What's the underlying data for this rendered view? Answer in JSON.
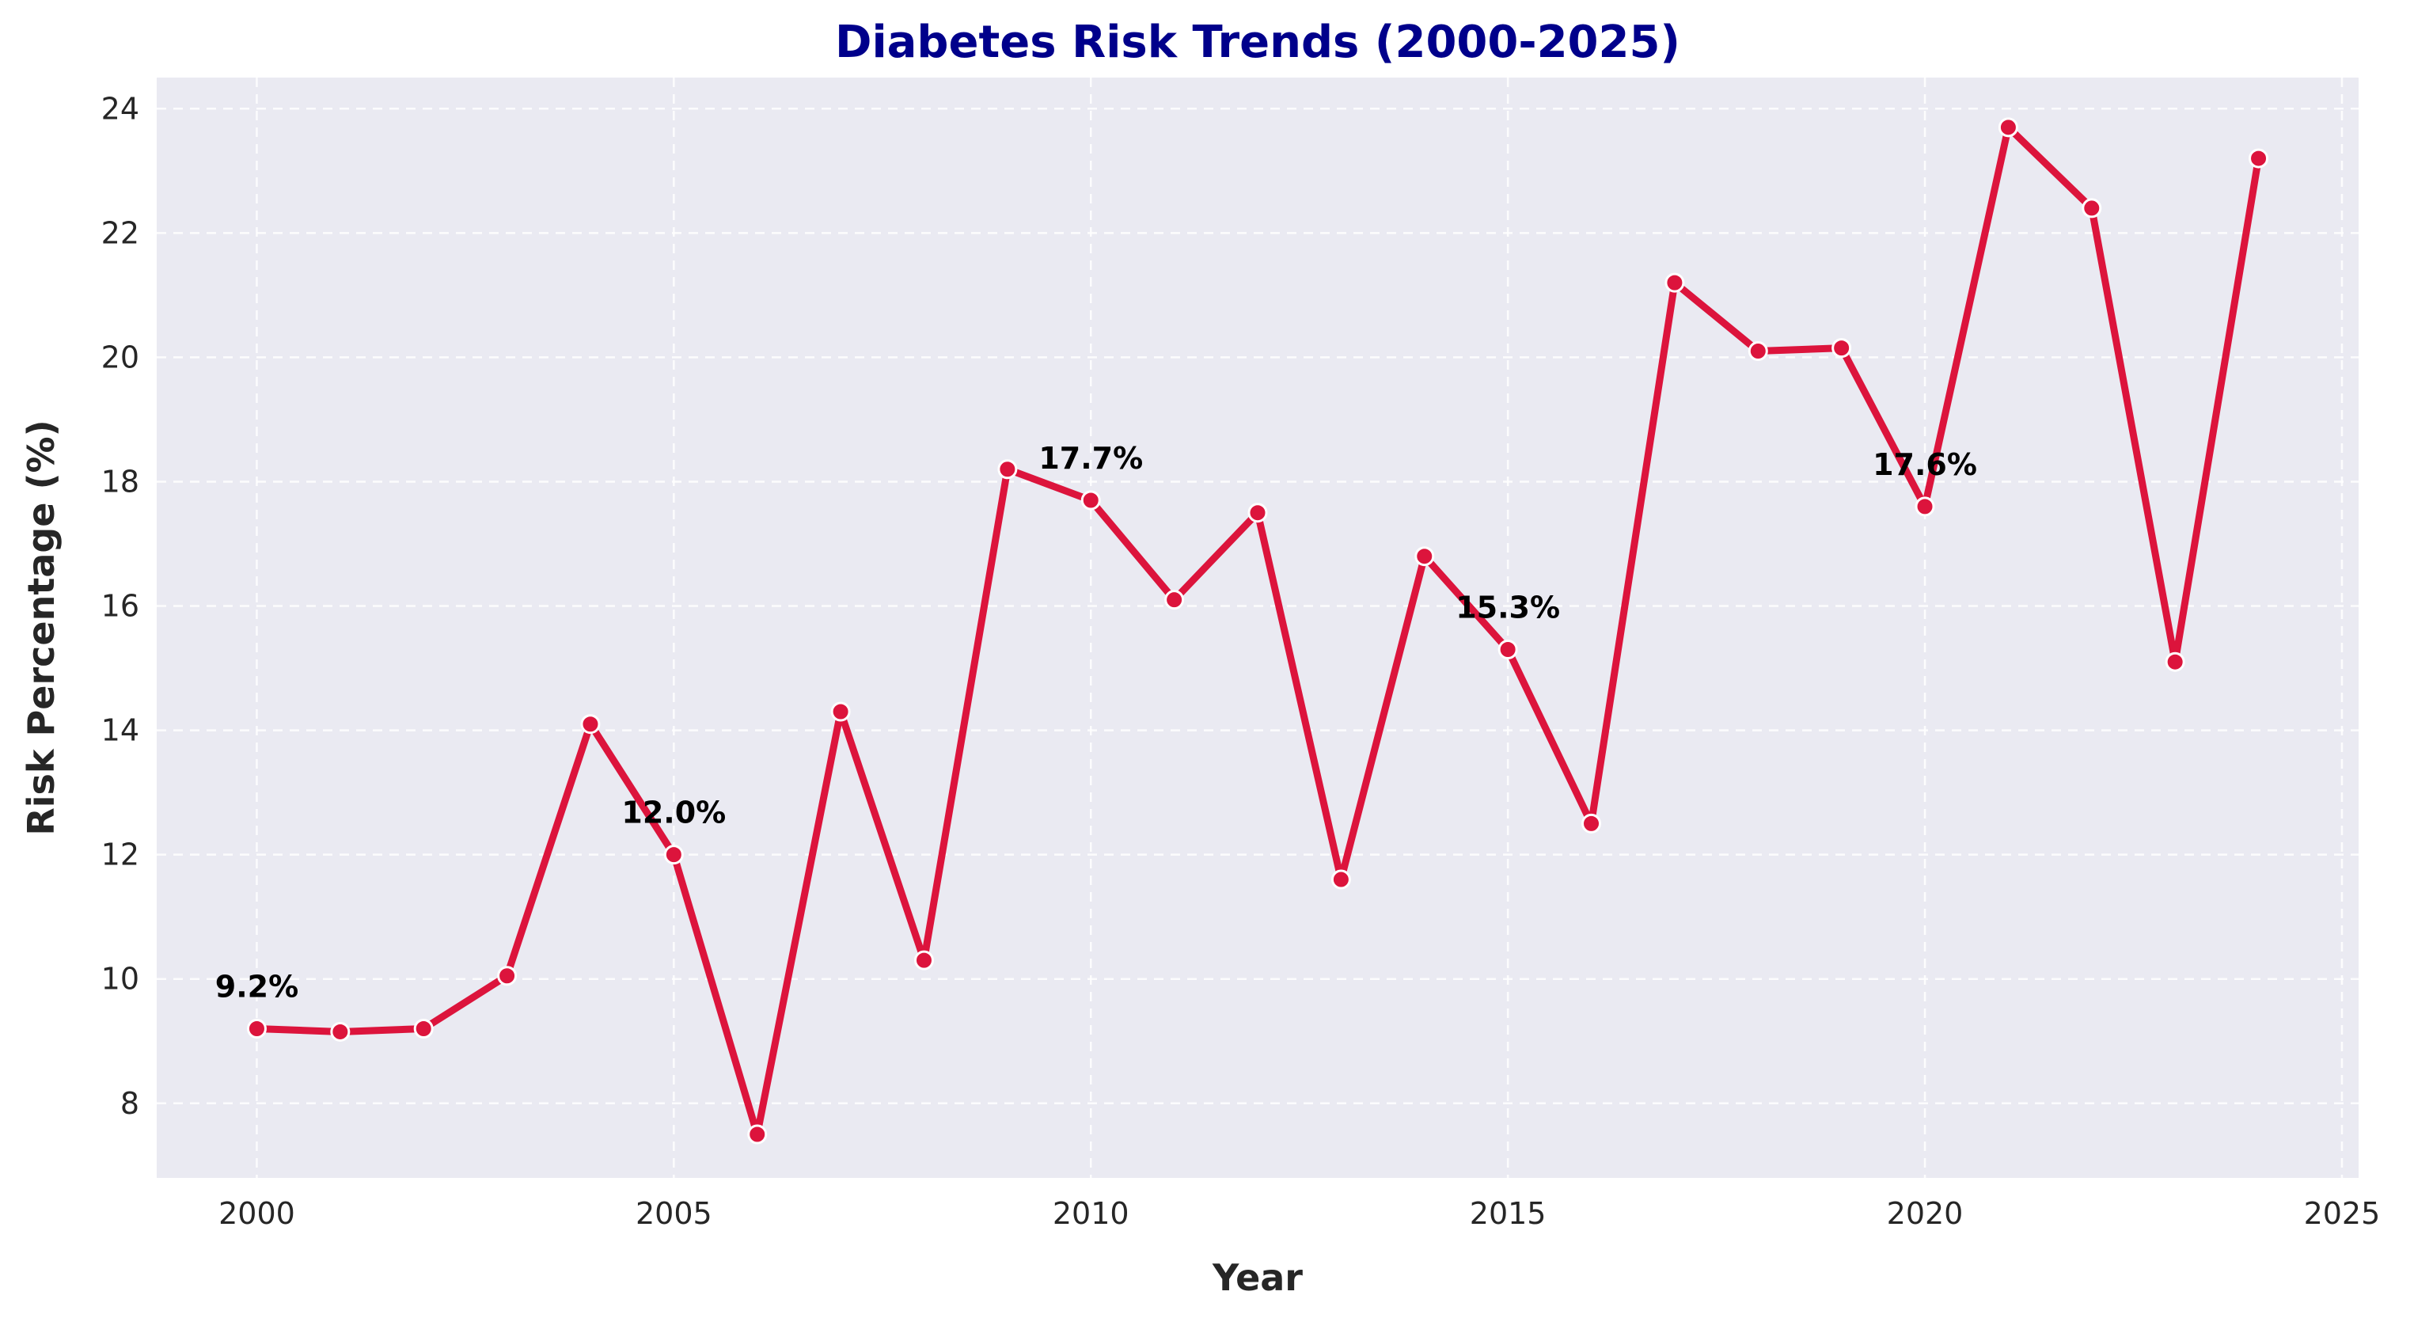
{
  "chart_data": {
    "type": "line",
    "title": "Diabetes Risk Trends (2000-2025)",
    "xlabel": "Year",
    "ylabel": "Risk Percentage (%)",
    "xlim": [
      1998.8,
      2025.2
    ],
    "ylim": [
      6.8,
      24.5
    ],
    "x_ticks": [
      2000,
      2005,
      2010,
      2015,
      2020,
      2025
    ],
    "y_ticks": [
      8,
      10,
      12,
      14,
      16,
      18,
      20,
      22,
      24
    ],
    "grid": true,
    "series": [
      {
        "x": [
          2000,
          2001,
          2002,
          2003,
          2004,
          2005,
          2006,
          2007,
          2008,
          2009,
          2010,
          2011,
          2012,
          2013,
          2014,
          2015,
          2016,
          2017,
          2018,
          2019,
          2020,
          2021,
          2022,
          2023,
          2024
        ],
        "values": [
          9.2,
          9.15,
          9.2,
          10.05,
          14.1,
          12.0,
          7.5,
          14.3,
          10.3,
          18.2,
          17.7,
          16.1,
          17.5,
          11.6,
          16.8,
          15.3,
          12.5,
          21.2,
          20.1,
          20.15,
          17.6,
          23.7,
          22.4,
          15.1,
          23.2
        ]
      }
    ],
    "annotations": [
      {
        "x": 2000,
        "y": 9.2,
        "text": "9.2%"
      },
      {
        "x": 2005,
        "y": 12.0,
        "text": "12.0%"
      },
      {
        "x": 2010,
        "y": 17.7,
        "text": "17.7%"
      },
      {
        "x": 2015,
        "y": 15.3,
        "text": "15.3%"
      },
      {
        "x": 2020,
        "y": 17.6,
        "text": "17.6%"
      }
    ],
    "colors": {
      "line": "#dc143c",
      "marker_edge": "#ffffff",
      "title": "#00008b",
      "plot_background": "#eaeaf2"
    }
  }
}
